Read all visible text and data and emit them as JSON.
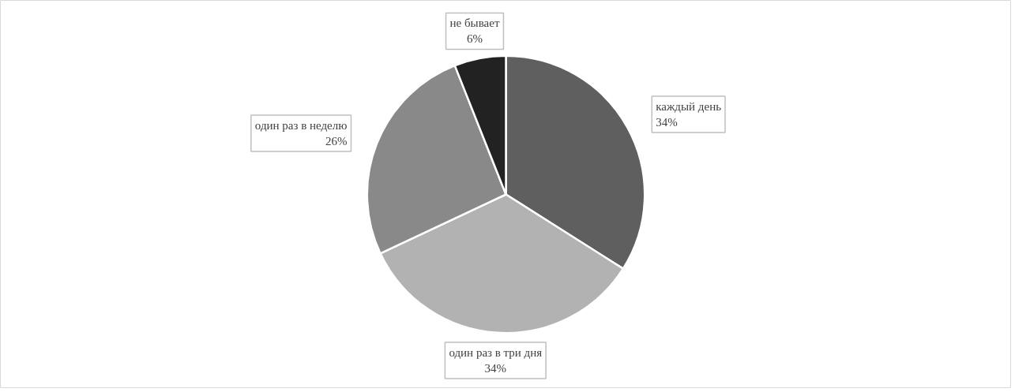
{
  "chart_data": {
    "type": "pie",
    "categories": [
      "каждый день",
      "один раз в три дня",
      "один раз в неделю",
      "не бывает"
    ],
    "values": [
      34,
      34,
      26,
      6
    ],
    "value_labels": [
      "34%",
      "34%",
      "26%",
      "6%"
    ],
    "colors": [
      "#5f5f5f",
      "#b2b2b2",
      "#898989",
      "#222222"
    ]
  }
}
